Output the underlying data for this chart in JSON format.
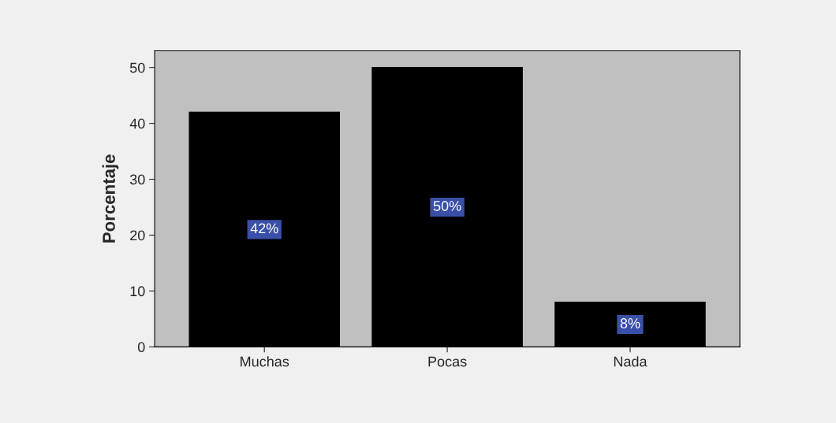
{
  "chart_data": {
    "type": "bar",
    "ylabel": "Porcentaje",
    "categories": [
      "Muchas",
      "Pocas",
      "Nada"
    ],
    "values": [
      42,
      50,
      8
    ],
    "value_labels": [
      "42%",
      "50%",
      "8%"
    ],
    "color": "#000000",
    "ylim": [
      0,
      53
    ],
    "yticks": [
      0,
      10,
      20,
      30,
      40,
      50
    ],
    "grid": false,
    "legend": false
  }
}
